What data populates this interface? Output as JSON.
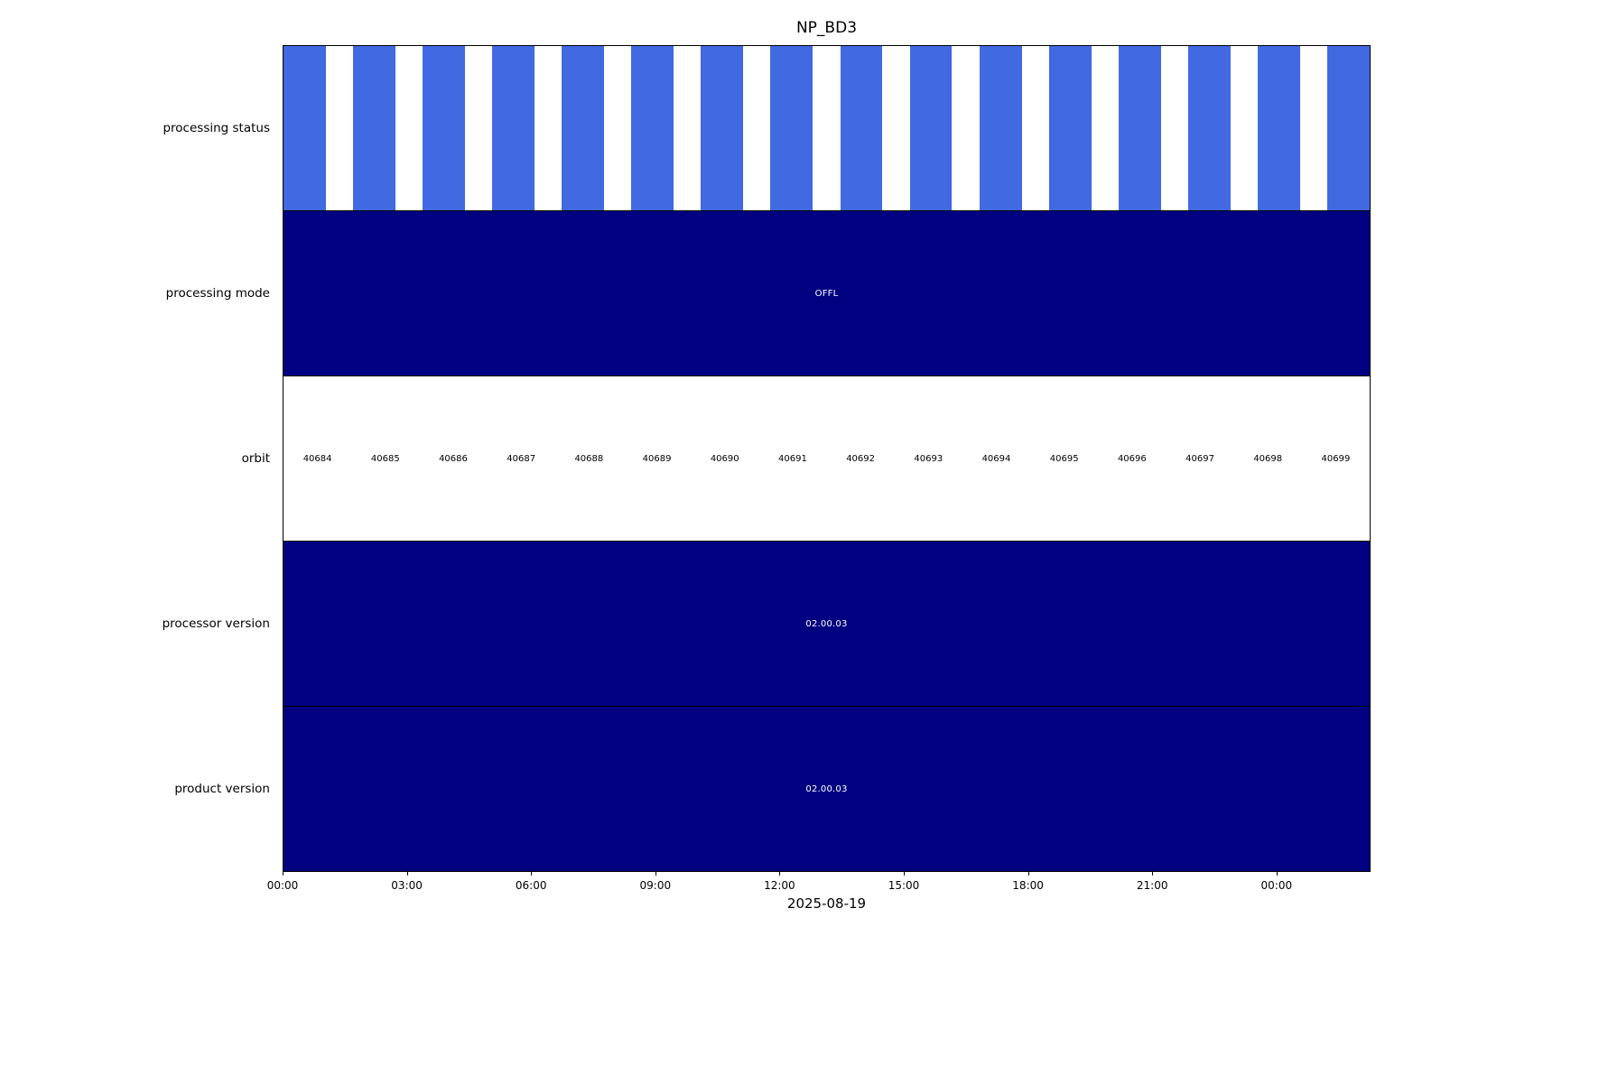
{
  "chart_data": {
    "type": "timeline",
    "title": "NP_BD3",
    "xlabel": "2025-08-19",
    "x_ticks": [
      "00:00",
      "03:00",
      "06:00",
      "09:00",
      "12:00",
      "15:00",
      "18:00",
      "21:00",
      "00:00"
    ],
    "legend_position": "none",
    "grid": false,
    "colors": {
      "stripe_blue": "#4169e1",
      "navy": "#000080",
      "background": "#ffffff"
    },
    "rows": [
      {
        "label": "processing status",
        "kind": "striped",
        "bar_color": "#4169e1",
        "bar_count": 16,
        "bar_width_fraction": 0.039
      },
      {
        "label": "processing mode",
        "kind": "solid",
        "color": "#000080",
        "text": "OFFL",
        "text_color": "#ffffff"
      },
      {
        "label": "orbit",
        "kind": "labels",
        "color": "#ffffff",
        "text_color": "#000000",
        "values": [
          "40684",
          "40685",
          "40686",
          "40687",
          "40688",
          "40689",
          "40690",
          "40691",
          "40692",
          "40693",
          "40694",
          "40695",
          "40696",
          "40697",
          "40698",
          "40699"
        ]
      },
      {
        "label": "processor version",
        "kind": "solid",
        "color": "#000080",
        "text": "02.00.03",
        "text_color": "#ffffff"
      },
      {
        "label": "product version",
        "kind": "solid",
        "color": "#000080",
        "text": "02.00.03",
        "text_color": "#ffffff"
      }
    ]
  }
}
